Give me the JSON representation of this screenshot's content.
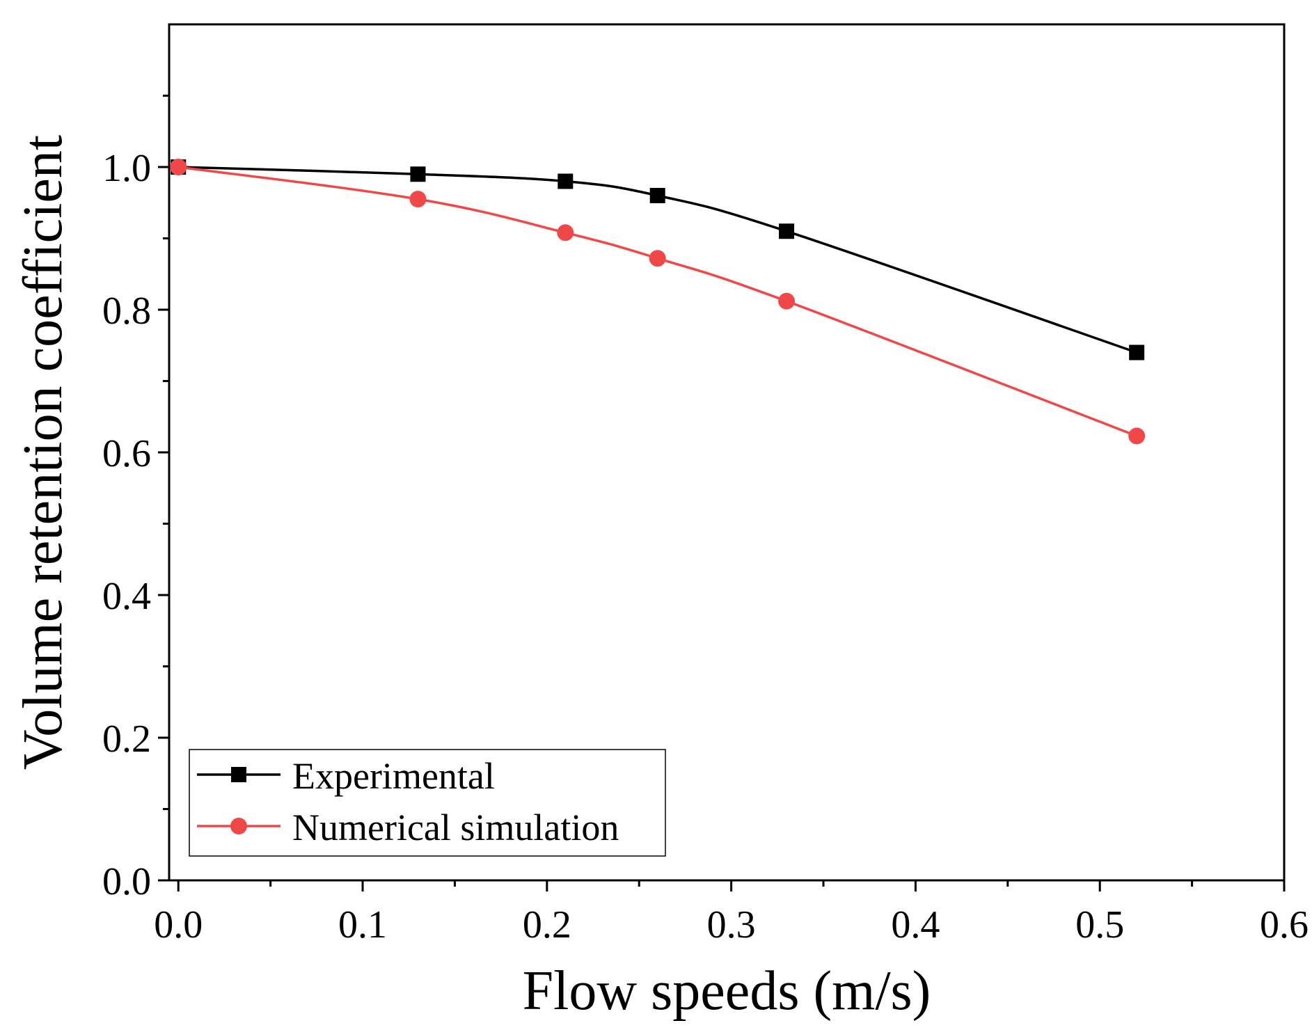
{
  "chart_data": {
    "type": "line",
    "title": "",
    "xlabel": "Flow speeds (m/s)",
    "ylabel": "Volume retention coefficient",
    "xlim": [
      -0.005,
      0.6
    ],
    "ylim": [
      0.0,
      1.2
    ],
    "xticks": [
      0.0,
      0.1,
      0.2,
      0.3,
      0.4,
      0.5,
      0.6
    ],
    "xtick_labels": [
      "0.0",
      "0.1",
      "0.2",
      "0.3",
      "0.4",
      "0.5",
      "0.6"
    ],
    "yticks": [
      0.0,
      0.2,
      0.4,
      0.6,
      0.8,
      1.0
    ],
    "ytick_labels": [
      "0.0",
      "0.2",
      "0.4",
      "0.6",
      "0.8",
      "1.0"
    ],
    "grid": false,
    "legend_position": "bottom-left",
    "series": [
      {
        "name": "Experimental",
        "color": "#000000",
        "marker": "square",
        "x": [
          0.0,
          0.13,
          0.21,
          0.26,
          0.33,
          0.52
        ],
        "y": [
          1.0,
          0.99,
          0.98,
          0.96,
          0.91,
          0.74
        ]
      },
      {
        "name": "Numerical simulation",
        "color": "#f04848",
        "marker": "circle",
        "x": [
          0.0,
          0.13,
          0.21,
          0.26,
          0.33,
          0.52
        ],
        "y": [
          1.0,
          0.955,
          0.908,
          0.872,
          0.812,
          0.623
        ]
      }
    ]
  }
}
